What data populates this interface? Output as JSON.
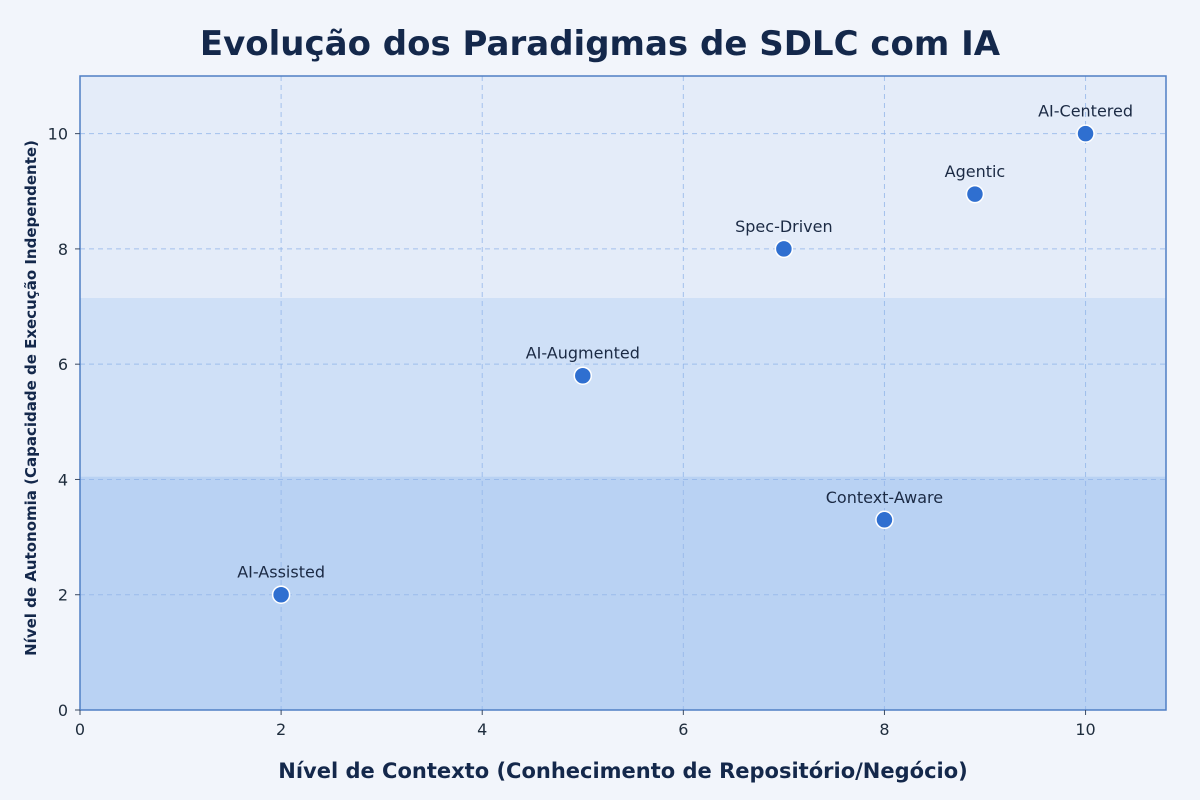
{
  "chart_data": {
    "type": "scatter",
    "title": "Evolução dos Paradigmas de SDLC com IA",
    "xlabel": "Nível de Contexto (Conhecimento de Repositório/Negócio)",
    "ylabel": "Nível de Autonomia (Capacidade de Execução Independente)",
    "xlim": [
      0,
      10.8
    ],
    "ylim": [
      0,
      11
    ],
    "xticks": [
      0,
      2,
      4,
      6,
      8,
      10
    ],
    "yticks": [
      0,
      2,
      4,
      6,
      8,
      10
    ],
    "grid": true,
    "regions": [
      {
        "y_from": 0,
        "y_to": 4.05,
        "color": "#b9d2f3"
      },
      {
        "y_from": 4.05,
        "y_to": 7.15,
        "color": "#cfe0f7"
      },
      {
        "y_from": 7.15,
        "y_to": 11,
        "color": "#e4ecf9"
      }
    ],
    "points": [
      {
        "label": "AI-Assisted",
        "x": 2.0,
        "y": 2.0
      },
      {
        "label": "AI-Augmented",
        "x": 5.0,
        "y": 5.8
      },
      {
        "label": "Spec-Driven",
        "x": 7.0,
        "y": 8.0
      },
      {
        "label": "Context-Aware",
        "x": 8.0,
        "y": 3.3
      },
      {
        "label": "Agentic",
        "x": 8.9,
        "y": 8.95
      },
      {
        "label": "AI-Centered",
        "x": 10.0,
        "y": 10.0
      }
    ],
    "colors": {
      "point": "#2f6fd0",
      "grid": "#93b6ea",
      "frame": "#4f7fc4",
      "text": "#14284b"
    }
  }
}
